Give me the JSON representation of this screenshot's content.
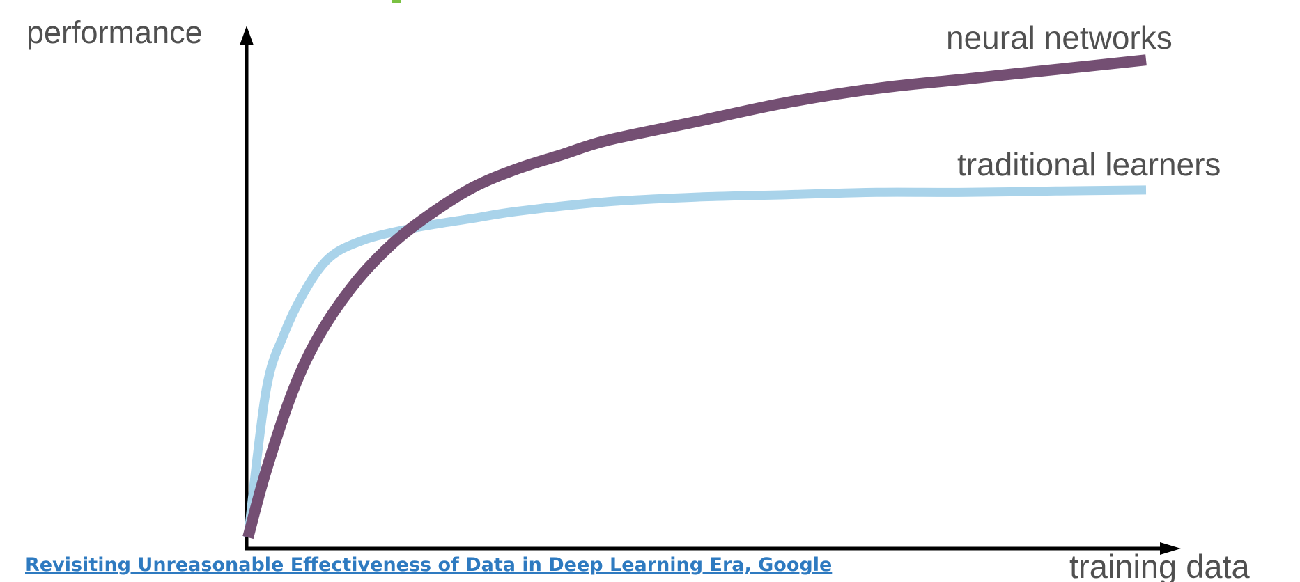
{
  "caption": {
    "text": "Revisiting Unreasonable Effectiveness of Data in Deep Learning Era, Google"
  },
  "colors": {
    "axis": "#000000",
    "label_text": "#505050",
    "neural_networks": "#744f73",
    "traditional_learners": "#a9d3ea",
    "link": "#2e7ac0",
    "top_accent": "#7ac142"
  },
  "chart_data": {
    "type": "line",
    "title": "",
    "xlabel": "training data",
    "ylabel": "performance",
    "xlim": [
      0,
      100
    ],
    "ylim": [
      0,
      100
    ],
    "grid": false,
    "legend": "inline labels at line ends (top-right)",
    "series": [
      {
        "name": "neural networks",
        "x": [
          0,
          2,
          5,
          8,
          12,
          16,
          20,
          25,
          30,
          35,
          40,
          50,
          60,
          70,
          80,
          90,
          100
        ],
        "y": [
          0,
          14,
          31,
          43,
          54,
          62,
          68,
          74,
          78,
          81,
          84,
          88,
          92,
          95,
          97,
          99,
          101
        ]
      },
      {
        "name": "traditional learners",
        "x": [
          0,
          2,
          4,
          6,
          8,
          10,
          13,
          16,
          20,
          25,
          30,
          40,
          50,
          60,
          70,
          80,
          90,
          100
        ],
        "y": [
          0,
          31,
          43,
          51,
          57,
          60.5,
          63,
          64.5,
          66,
          67.5,
          69,
          71,
          72,
          72.5,
          73,
          73,
          73.3,
          73.5
        ]
      }
    ]
  }
}
